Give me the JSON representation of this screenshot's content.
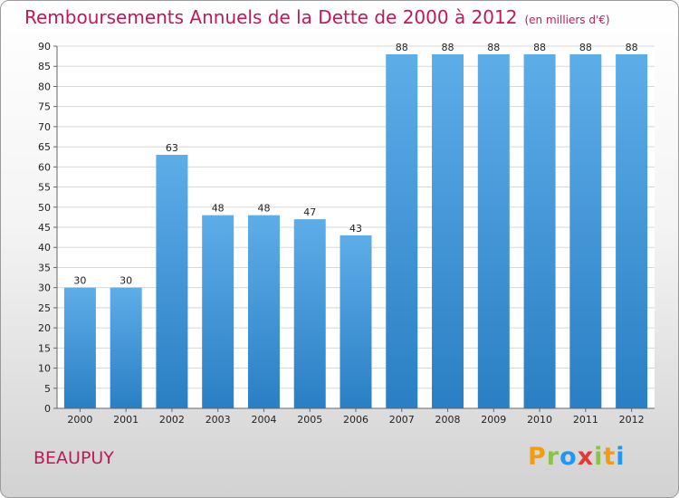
{
  "title": "Remboursements Annuels de la Dette de 2000 à 2012",
  "subtitle": "(en milliers d'€)",
  "commune": "BEAUPUY",
  "logo": {
    "letters": [
      "P",
      "r",
      "o",
      "x",
      "i",
      "t",
      "i"
    ],
    "colors": [
      "#f39c12",
      "#8bc34a",
      "#2196f3",
      "#e53935",
      "#8bc34a",
      "#f39c12",
      "#2196f3"
    ]
  },
  "chart_data": {
    "type": "bar",
    "title": "Remboursements Annuels de la Dette de 2000 à 2012",
    "subtitle": "(en milliers d'€)",
    "xlabel": "",
    "ylabel": "",
    "categories": [
      "2000",
      "2001",
      "2002",
      "2003",
      "2004",
      "2005",
      "2006",
      "2007",
      "2008",
      "2009",
      "2010",
      "2011",
      "2012"
    ],
    "values": [
      30,
      30,
      63,
      48,
      48,
      47,
      43,
      88,
      88,
      88,
      88,
      88,
      88
    ],
    "ylim": [
      0,
      90
    ],
    "ytick_step": 5,
    "grid": true,
    "bar_color": "#4a9fe0"
  }
}
